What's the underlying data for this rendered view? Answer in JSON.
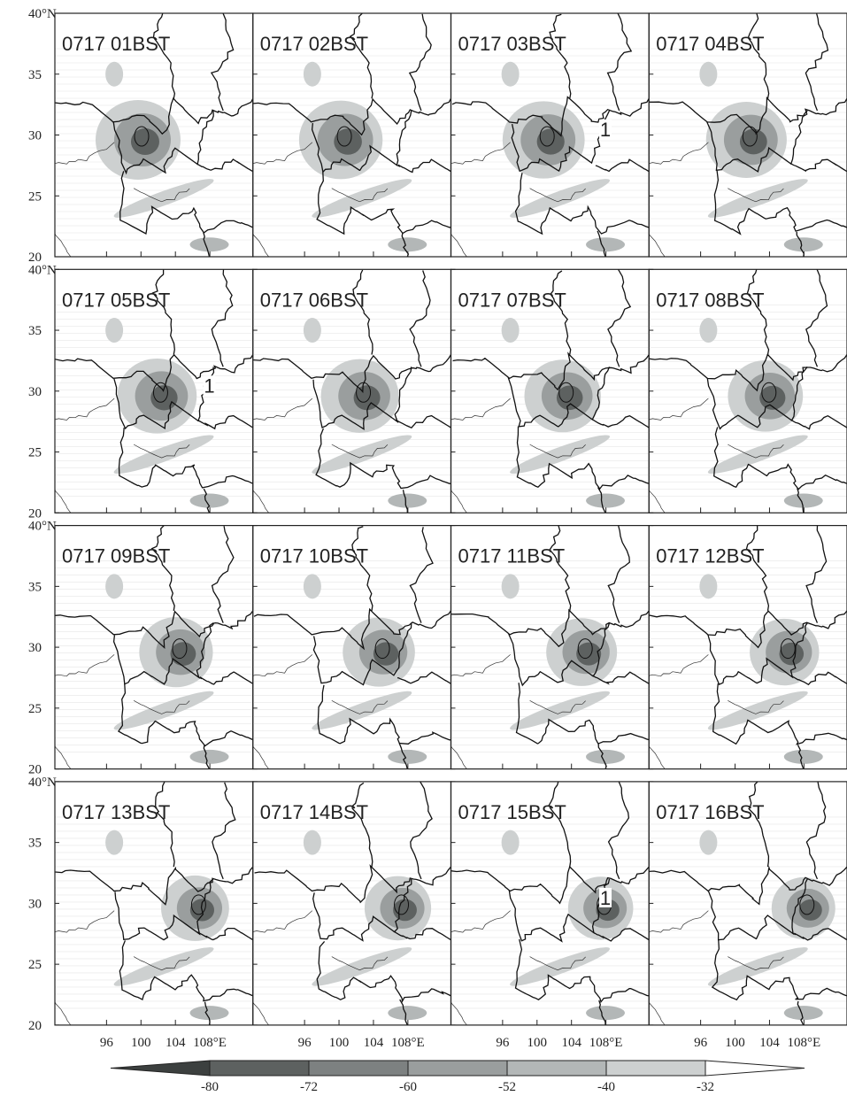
{
  "chart_data": {
    "type": "map-panels",
    "panels": [
      {
        "label": "0717 01BST"
      },
      {
        "label": "0717 02BST"
      },
      {
        "label": "0717 03BST",
        "annotation": "1"
      },
      {
        "label": "0717 04BST"
      },
      {
        "label": "0717 05BST",
        "annotation": "1"
      },
      {
        "label": "0717 06BST"
      },
      {
        "label": "0717 07BST"
      },
      {
        "label": "0717 08BST"
      },
      {
        "label": "0717 09BST"
      },
      {
        "label": "0717 10BST"
      },
      {
        "label": "0717 11BST"
      },
      {
        "label": "0717 12BST"
      },
      {
        "label": "0717 13BST"
      },
      {
        "label": "0717 14BST"
      },
      {
        "label": "0717 15BST",
        "annotation": "1"
      },
      {
        "label": "0717 16BST"
      }
    ],
    "ylim": [
      20,
      40
    ],
    "yticks": [
      20,
      25,
      30,
      35,
      {
        "value": 40,
        "label": "40°N"
      }
    ],
    "xlim": [
      90,
      113
    ],
    "xticks": [
      96,
      100,
      104,
      {
        "value": 108,
        "label": "108°E"
      }
    ],
    "colorbar": {
      "levels": [
        -80,
        -72,
        -60,
        -52,
        -40,
        -32
      ],
      "colors": [
        "#3c403f",
        "#5d6160",
        "#7d8181",
        "#9a9e9e",
        "#b3b7b7",
        "#cdd0d0",
        "#ffffff"
      ]
    }
  }
}
